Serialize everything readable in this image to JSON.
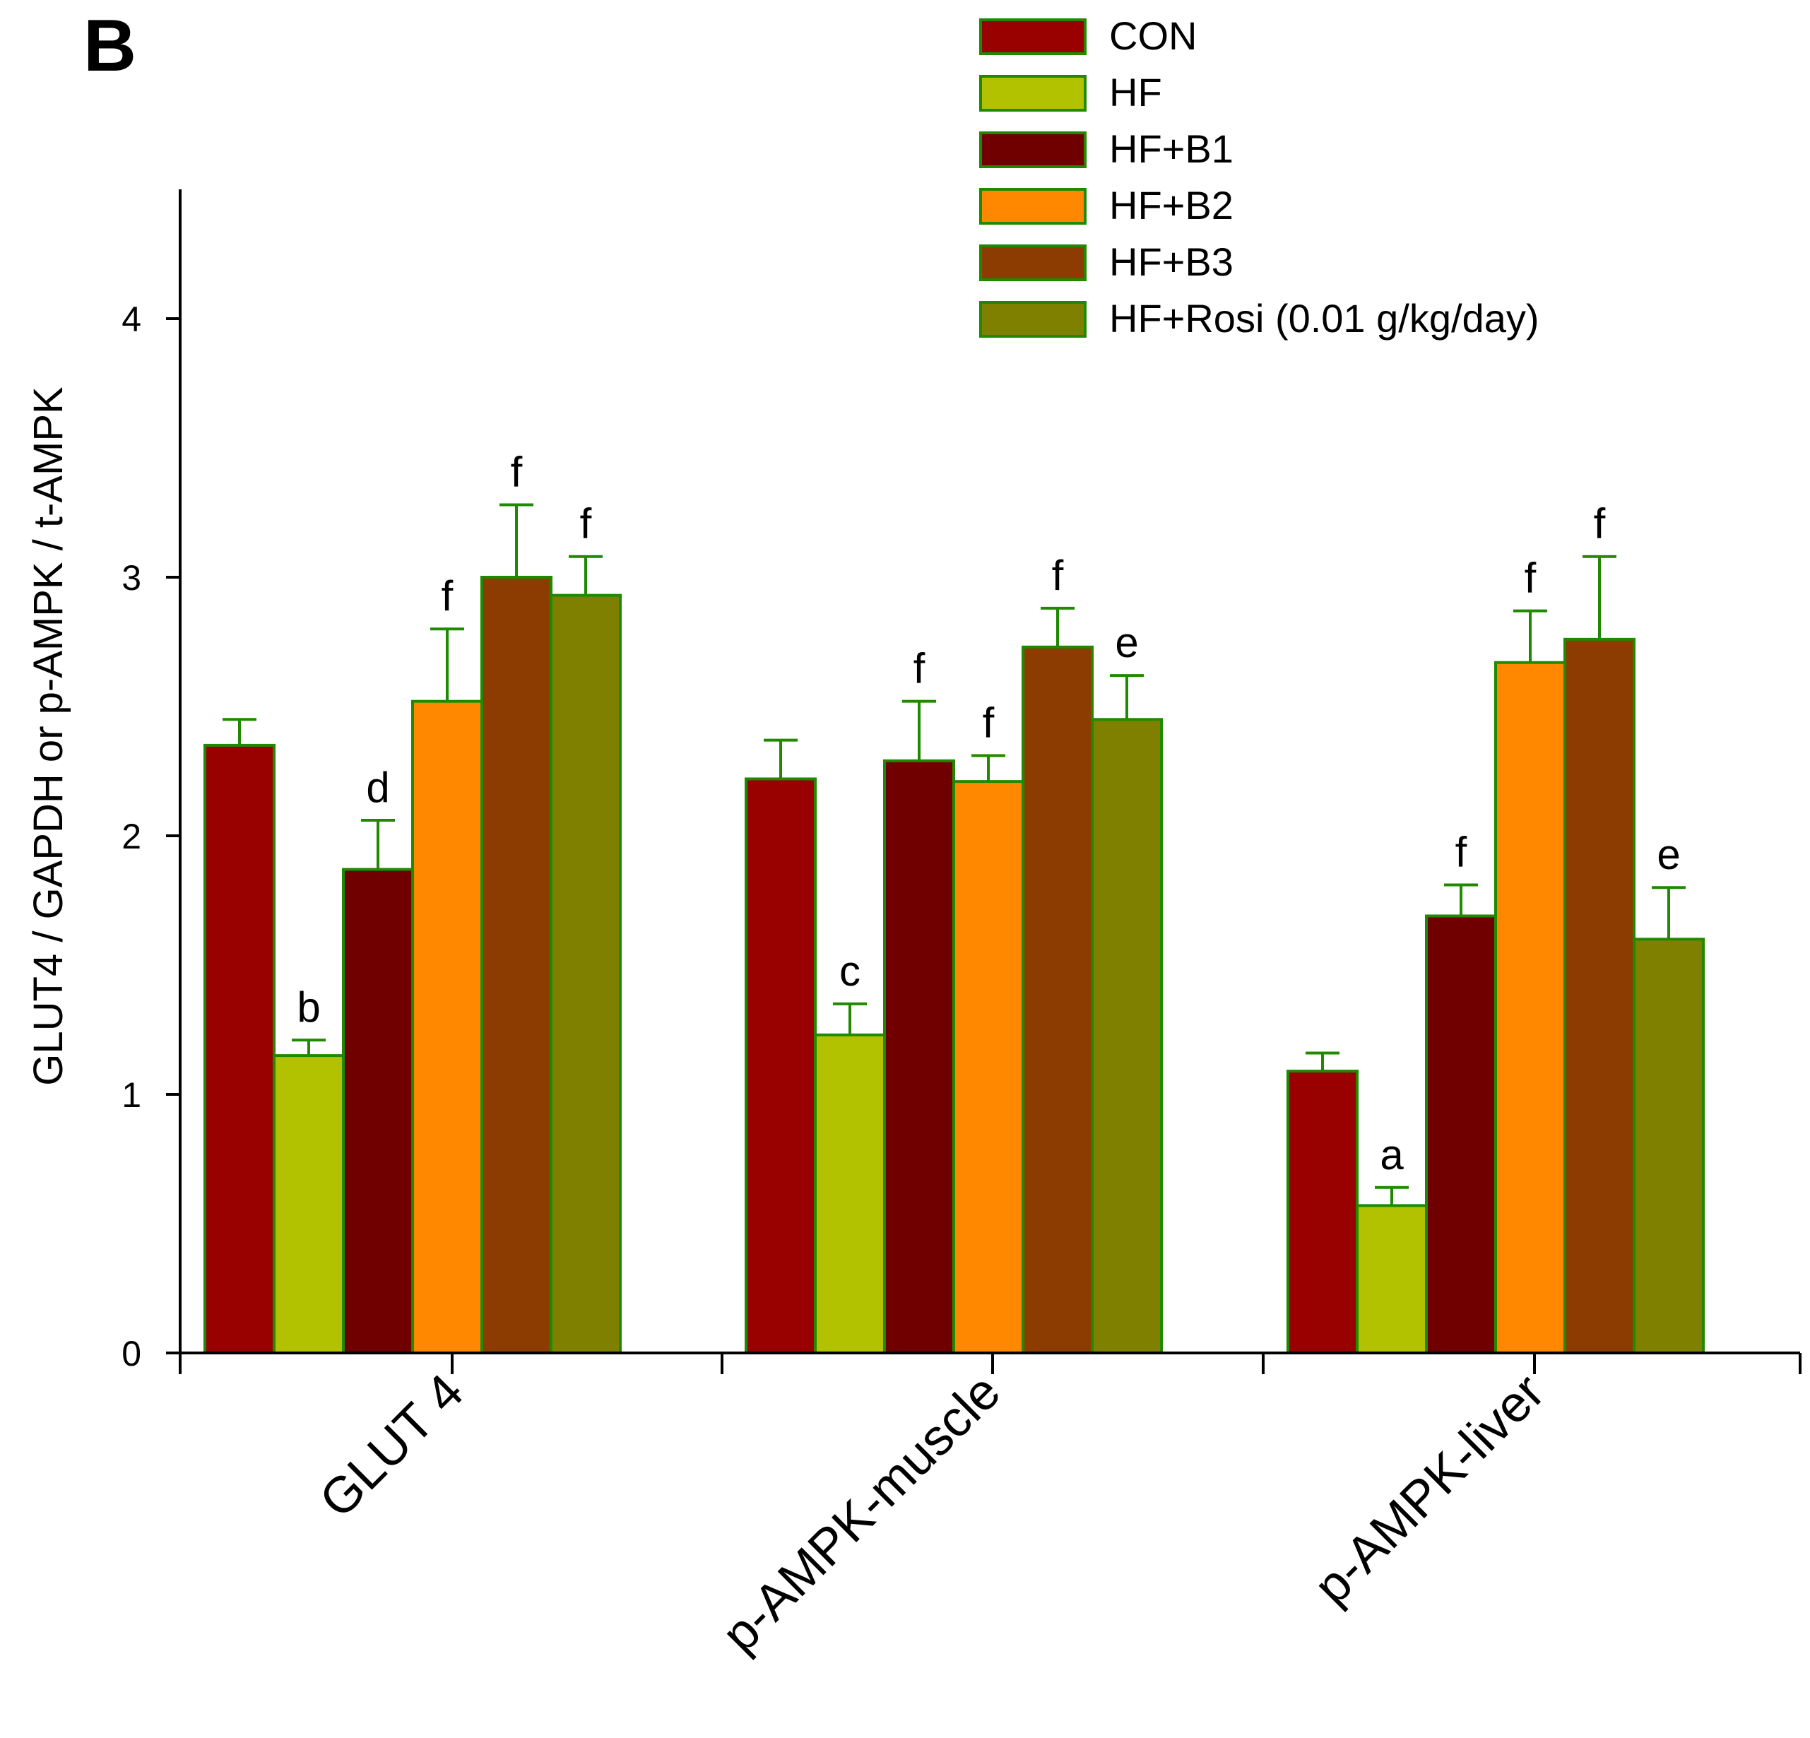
{
  "panel_label": "B",
  "chart_data": {
    "type": "bar",
    "title": "",
    "xlabel": "",
    "ylabel": "GLUT4 / GAPDH or p-AMPK / t-AMPK",
    "ylim": [
      0,
      4.5
    ],
    "yticks": [
      0,
      1,
      2,
      3,
      4
    ],
    "grid": false,
    "legend_position": "top-right",
    "categories": [
      "GLUT 4",
      "p-AMPK-muscle",
      "p-AMPK-liver"
    ],
    "series": [
      {
        "name": "CON",
        "color": "#990000",
        "values": [
          2.35,
          2.22,
          1.09
        ],
        "errors": [
          0.1,
          0.15,
          0.07
        ],
        "labels": [
          "",
          "",
          ""
        ]
      },
      {
        "name": "HF",
        "color": "#b3c200",
        "values": [
          1.15,
          1.23,
          0.57
        ],
        "errors": [
          0.06,
          0.12,
          0.07
        ],
        "labels": [
          "b",
          "c",
          "a"
        ]
      },
      {
        "name": "HF+B1",
        "color": "#700000",
        "values": [
          1.87,
          2.29,
          1.69
        ],
        "errors": [
          0.19,
          0.23,
          0.12
        ],
        "labels": [
          "d",
          "f",
          "f"
        ]
      },
      {
        "name": "HF+B2",
        "color": "#ff8800",
        "values": [
          2.52,
          2.21,
          2.67
        ],
        "errors": [
          0.28,
          0.1,
          0.2
        ],
        "labels": [
          "f",
          "f",
          "f"
        ]
      },
      {
        "name": "HF+B3",
        "color": "#8c3c00",
        "values": [
          3.0,
          2.73,
          2.76
        ],
        "errors": [
          0.28,
          0.15,
          0.32
        ],
        "labels": [
          "f",
          "f",
          "f"
        ]
      },
      {
        "name": "HF+Rosi (0.01 g/kg/day)",
        "color": "#808000",
        "values": [
          2.93,
          2.45,
          1.6
        ],
        "errors": [
          0.15,
          0.17,
          0.2
        ],
        "labels": [
          "f",
          "e",
          "e"
        ]
      }
    ],
    "bar_outline_color": "#1f8a00",
    "error_bar_color": "#1f8a00"
  }
}
